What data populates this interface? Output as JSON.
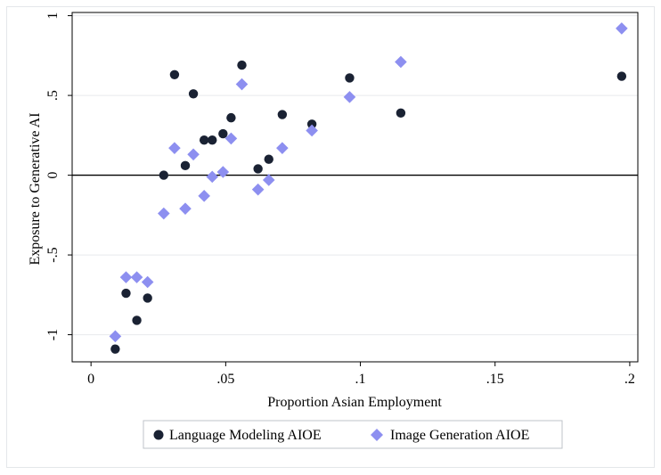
{
  "chart_data": {
    "type": "scatter",
    "xlabel": "Proportion Asian Employment",
    "ylabel": "Exposure to Generative AI",
    "xlim": [
      -0.007,
      0.203
    ],
    "ylim": [
      -1.17,
      1.02
    ],
    "x_ticks": [
      {
        "value": 0,
        "label": "0"
      },
      {
        "value": 0.05,
        "label": ".05"
      },
      {
        "value": 0.1,
        "label": ".1"
      },
      {
        "value": 0.15,
        "label": ".15"
      },
      {
        "value": 0.2,
        "label": ".2"
      }
    ],
    "y_ticks": [
      {
        "value": 1,
        "label": "1"
      },
      {
        "value": 0.5,
        "label": ".5"
      },
      {
        "value": 0,
        "label": "0"
      },
      {
        "value": -0.5,
        "label": "-.5"
      },
      {
        "value": -1,
        "label": "-1"
      }
    ],
    "grid": true,
    "reference_line_y": 0,
    "legend_position": "bottom",
    "series": [
      {
        "name": "Language Modeling AIOE",
        "marker": "circle",
        "color": "#1a2233",
        "points": [
          {
            "x": 0.009,
            "y": -1.09
          },
          {
            "x": 0.013,
            "y": -0.74
          },
          {
            "x": 0.017,
            "y": -0.91
          },
          {
            "x": 0.021,
            "y": -0.77
          },
          {
            "x": 0.027,
            "y": 0.0
          },
          {
            "x": 0.031,
            "y": 0.63
          },
          {
            "x": 0.035,
            "y": 0.06
          },
          {
            "x": 0.038,
            "y": 0.51
          },
          {
            "x": 0.042,
            "y": 0.22
          },
          {
            "x": 0.045,
            "y": 0.22
          },
          {
            "x": 0.049,
            "y": 0.26
          },
          {
            "x": 0.052,
            "y": 0.36
          },
          {
            "x": 0.056,
            "y": 0.69
          },
          {
            "x": 0.062,
            "y": 0.04
          },
          {
            "x": 0.066,
            "y": 0.1
          },
          {
            "x": 0.071,
            "y": 0.38
          },
          {
            "x": 0.082,
            "y": 0.32
          },
          {
            "x": 0.096,
            "y": 0.61
          },
          {
            "x": 0.115,
            "y": 0.39
          },
          {
            "x": 0.197,
            "y": 0.62
          }
        ]
      },
      {
        "name": "Image Generation AIOE",
        "marker": "diamond",
        "color": "#8d8ff0",
        "points": [
          {
            "x": 0.009,
            "y": -1.01
          },
          {
            "x": 0.013,
            "y": -0.64
          },
          {
            "x": 0.017,
            "y": -0.64
          },
          {
            "x": 0.021,
            "y": -0.67
          },
          {
            "x": 0.027,
            "y": -0.24
          },
          {
            "x": 0.031,
            "y": 0.17
          },
          {
            "x": 0.035,
            "y": -0.21
          },
          {
            "x": 0.038,
            "y": 0.13
          },
          {
            "x": 0.042,
            "y": -0.13
          },
          {
            "x": 0.045,
            "y": -0.01
          },
          {
            "x": 0.049,
            "y": 0.02
          },
          {
            "x": 0.052,
            "y": 0.23
          },
          {
            "x": 0.056,
            "y": 0.57
          },
          {
            "x": 0.062,
            "y": -0.09
          },
          {
            "x": 0.066,
            "y": -0.03
          },
          {
            "x": 0.071,
            "y": 0.17
          },
          {
            "x": 0.082,
            "y": 0.28
          },
          {
            "x": 0.096,
            "y": 0.49
          },
          {
            "x": 0.115,
            "y": 0.71
          },
          {
            "x": 0.197,
            "y": 0.92
          }
        ]
      }
    ]
  }
}
